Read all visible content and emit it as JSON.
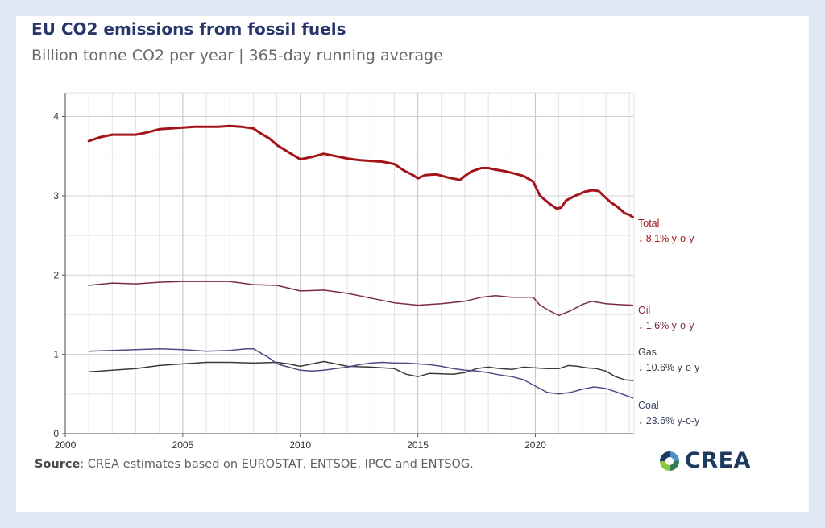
{
  "header": {
    "title": "EU CO2 emissions from fossil fuels",
    "subtitle": "Billion tonne CO2 per year | 365-day running average"
  },
  "footer": {
    "source_label": "Source",
    "source_text": ": CREA estimates based on EUROSTAT, ENTSOE, IPCC and ENTSOG.",
    "logo_text": "CREA"
  },
  "colors": {
    "total": "#a3141a",
    "oil": "#7a2a48",
    "gas": "#3a3a3a",
    "coal": "#4b4f86",
    "grid": "#d9d9d9"
  },
  "chart_data": {
    "type": "line",
    "title": "EU CO2 emissions from fossil fuels",
    "subtitle": "Billion tonne CO2 per year | 365-day running average",
    "xlim": [
      2000,
      2024.2
    ],
    "ylim": [
      0,
      4.3
    ],
    "x_ticks": [
      2000,
      2005,
      2010,
      2015,
      2020
    ],
    "y_ticks": [
      0,
      1,
      2,
      3,
      4
    ],
    "grid": true,
    "legend": "direct-labels-right",
    "series": [
      {
        "key": "total",
        "name": "Total",
        "change": "↓ 8.1% y-o-y",
        "color": "#a3141a",
        "points": [
          [
            2001,
            3.69
          ],
          [
            2001.5,
            3.74
          ],
          [
            2002,
            3.77
          ],
          [
            2003,
            3.77
          ],
          [
            2003.5,
            3.8
          ],
          [
            2004,
            3.84
          ],
          [
            2004.5,
            3.85
          ],
          [
            2005,
            3.86
          ],
          [
            2005.5,
            3.87
          ],
          [
            2006,
            3.87
          ],
          [
            2006.5,
            3.87
          ],
          [
            2007,
            3.88
          ],
          [
            2007.5,
            3.87
          ],
          [
            2008,
            3.85
          ],
          [
            2008.3,
            3.79
          ],
          [
            2008.7,
            3.72
          ],
          [
            2009,
            3.64
          ],
          [
            2009.5,
            3.55
          ],
          [
            2010,
            3.46
          ],
          [
            2010.5,
            3.49
          ],
          [
            2011,
            3.53
          ],
          [
            2011.5,
            3.5
          ],
          [
            2012,
            3.47
          ],
          [
            2012.5,
            3.45
          ],
          [
            2013,
            3.44
          ],
          [
            2013.5,
            3.43
          ],
          [
            2014,
            3.4
          ],
          [
            2014.4,
            3.32
          ],
          [
            2014.8,
            3.26
          ],
          [
            2015,
            3.22
          ],
          [
            2015.3,
            3.26
          ],
          [
            2015.8,
            3.27
          ],
          [
            2016.3,
            3.23
          ],
          [
            2016.8,
            3.2
          ],
          [
            2017,
            3.25
          ],
          [
            2017.3,
            3.31
          ],
          [
            2017.7,
            3.35
          ],
          [
            2018,
            3.35
          ],
          [
            2018.3,
            3.33
          ],
          [
            2018.7,
            3.31
          ],
          [
            2019,
            3.29
          ],
          [
            2019.5,
            3.25
          ],
          [
            2019.9,
            3.18
          ],
          [
            2020.2,
            3.0
          ],
          [
            2020.6,
            2.9
          ],
          [
            2020.9,
            2.84
          ],
          [
            2021.1,
            2.85
          ],
          [
            2021.3,
            2.94
          ],
          [
            2021.7,
            3.0
          ],
          [
            2022.1,
            3.05
          ],
          [
            2022.4,
            3.07
          ],
          [
            2022.7,
            3.06
          ],
          [
            2022.9,
            3.0
          ],
          [
            2023.2,
            2.92
          ],
          [
            2023.5,
            2.86
          ],
          [
            2023.8,
            2.78
          ],
          [
            2024,
            2.76
          ],
          [
            2024.15,
            2.73
          ]
        ]
      },
      {
        "key": "oil",
        "name": "Oil",
        "change": "↓ 1.6% y-o-y",
        "color": "#7a2a48",
        "points": [
          [
            2001,
            1.87
          ],
          [
            2002,
            1.9
          ],
          [
            2003,
            1.89
          ],
          [
            2004,
            1.91
          ],
          [
            2005,
            1.92
          ],
          [
            2006,
            1.92
          ],
          [
            2007,
            1.92
          ],
          [
            2008,
            1.88
          ],
          [
            2009,
            1.87
          ],
          [
            2010,
            1.8
          ],
          [
            2011,
            1.81
          ],
          [
            2012,
            1.77
          ],
          [
            2013,
            1.71
          ],
          [
            2014,
            1.65
          ],
          [
            2015,
            1.62
          ],
          [
            2016,
            1.64
          ],
          [
            2017,
            1.67
          ],
          [
            2017.7,
            1.72
          ],
          [
            2018.3,
            1.74
          ],
          [
            2019,
            1.72
          ],
          [
            2019.9,
            1.72
          ],
          [
            2020.2,
            1.62
          ],
          [
            2020.6,
            1.55
          ],
          [
            2021,
            1.49
          ],
          [
            2021.5,
            1.55
          ],
          [
            2022,
            1.63
          ],
          [
            2022.4,
            1.67
          ],
          [
            2023,
            1.64
          ],
          [
            2023.5,
            1.63
          ],
          [
            2024.15,
            1.62
          ]
        ]
      },
      {
        "key": "gas",
        "name": "Gas",
        "change": "↓ 10.6% y-o-y",
        "color": "#3a3a3a",
        "points": [
          [
            2001,
            0.78
          ],
          [
            2002,
            0.8
          ],
          [
            2003,
            0.82
          ],
          [
            2004,
            0.86
          ],
          [
            2005,
            0.88
          ],
          [
            2006,
            0.9
          ],
          [
            2007,
            0.9
          ],
          [
            2008,
            0.89
          ],
          [
            2009,
            0.9
          ],
          [
            2009.5,
            0.88
          ],
          [
            2010,
            0.85
          ],
          [
            2010.5,
            0.88
          ],
          [
            2011,
            0.91
          ],
          [
            2011.5,
            0.88
          ],
          [
            2012,
            0.85
          ],
          [
            2013,
            0.84
          ],
          [
            2014,
            0.82
          ],
          [
            2014.5,
            0.75
          ],
          [
            2015,
            0.72
          ],
          [
            2015.5,
            0.76
          ],
          [
            2016.5,
            0.75
          ],
          [
            2017,
            0.77
          ],
          [
            2017.5,
            0.82
          ],
          [
            2018,
            0.84
          ],
          [
            2018.5,
            0.82
          ],
          [
            2019,
            0.81
          ],
          [
            2019.5,
            0.84
          ],
          [
            2020,
            0.83
          ],
          [
            2020.5,
            0.82
          ],
          [
            2021,
            0.82
          ],
          [
            2021.4,
            0.86
          ],
          [
            2021.8,
            0.85
          ],
          [
            2022.2,
            0.83
          ],
          [
            2022.6,
            0.82
          ],
          [
            2023,
            0.79
          ],
          [
            2023.4,
            0.72
          ],
          [
            2023.8,
            0.68
          ],
          [
            2024.15,
            0.67
          ]
        ]
      },
      {
        "key": "coal",
        "name": "Coal",
        "change": "↓ 23.6% y-o-y",
        "color": "#4b4f86",
        "points": [
          [
            2001,
            1.04
          ],
          [
            2002,
            1.05
          ],
          [
            2003,
            1.06
          ],
          [
            2004,
            1.07
          ],
          [
            2005,
            1.06
          ],
          [
            2006,
            1.04
          ],
          [
            2007,
            1.05
          ],
          [
            2007.7,
            1.07
          ],
          [
            2008,
            1.07
          ],
          [
            2008.3,
            1.02
          ],
          [
            2008.7,
            0.95
          ],
          [
            2009,
            0.88
          ],
          [
            2009.5,
            0.84
          ],
          [
            2010,
            0.8
          ],
          [
            2010.5,
            0.79
          ],
          [
            2011,
            0.8
          ],
          [
            2011.5,
            0.82
          ],
          [
            2012,
            0.84
          ],
          [
            2012.5,
            0.87
          ],
          [
            2013,
            0.89
          ],
          [
            2013.5,
            0.9
          ],
          [
            2014,
            0.89
          ],
          [
            2014.5,
            0.89
          ],
          [
            2015,
            0.88
          ],
          [
            2015.5,
            0.87
          ],
          [
            2016,
            0.85
          ],
          [
            2016.5,
            0.82
          ],
          [
            2017,
            0.8
          ],
          [
            2017.5,
            0.79
          ],
          [
            2018,
            0.77
          ],
          [
            2018.5,
            0.74
          ],
          [
            2019,
            0.72
          ],
          [
            2019.5,
            0.68
          ],
          [
            2020,
            0.6
          ],
          [
            2020.5,
            0.52
          ],
          [
            2021,
            0.5
          ],
          [
            2021.5,
            0.52
          ],
          [
            2022,
            0.56
          ],
          [
            2022.5,
            0.59
          ],
          [
            2023,
            0.57
          ],
          [
            2023.5,
            0.52
          ],
          [
            2024.15,
            0.45
          ]
        ]
      }
    ]
  }
}
